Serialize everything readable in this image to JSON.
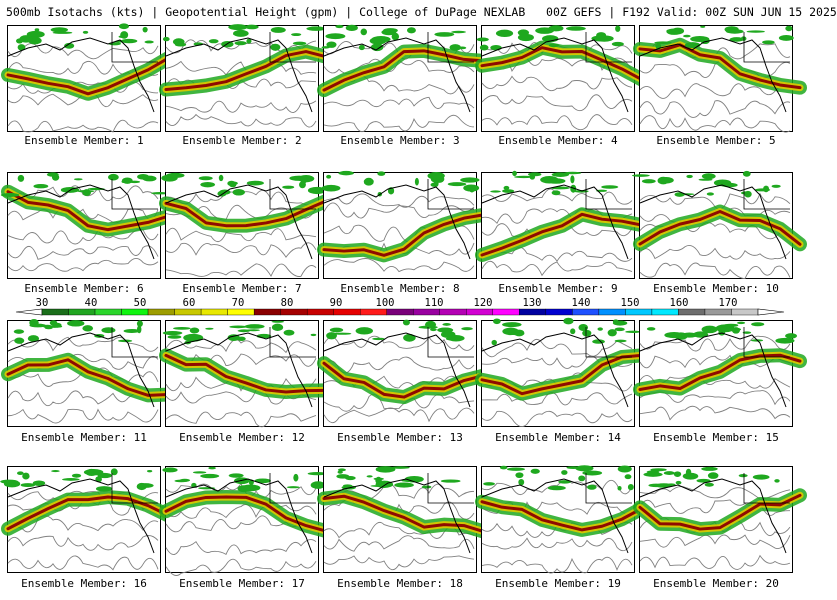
{
  "title": "500mb Isotachs (kts) | Geopotential Height (gpm) | College of DuPage NEXLAB   00Z GEFS | F192 Valid: 00Z SUN JUN 15 2025",
  "panel_label_prefix": "Ensemble Member: ",
  "members": [
    "1",
    "2",
    "3",
    "4",
    "5",
    "6",
    "7",
    "8",
    "9",
    "10",
    "11",
    "12",
    "13",
    "14",
    "15",
    "16",
    "17",
    "18",
    "19",
    "20"
  ],
  "colorbar": {
    "labels": [
      "30",
      "40",
      "50",
      "60",
      "70",
      "80",
      "90",
      "100",
      "110",
      "120",
      "130",
      "140",
      "150",
      "160",
      "170"
    ],
    "colors": [
      "#1a6e1a",
      "#21a521",
      "#2bd62b",
      "#10f510",
      "#9d9d00",
      "#c8c800",
      "#e8e800",
      "#ffff00",
      "#8b0000",
      "#a50000",
      "#c80000",
      "#e60000",
      "#ff1a1a",
      "#7a007a",
      "#9900a0",
      "#b400b4",
      "#d200d2",
      "#ff00ff",
      "#0000a0",
      "#0000d0",
      "#1e50ff",
      "#0090ff",
      "#00c8ff",
      "#00e8ff",
      "#6e6e6e",
      "#9a9a9a",
      "#c8c8c8"
    ]
  },
  "colors": {
    "speed_low": "#1fa81f",
    "speed_mid": "#d8c800",
    "speed_high": "#8b0000",
    "height_contour": "#808080",
    "coastline": "#000000"
  }
}
